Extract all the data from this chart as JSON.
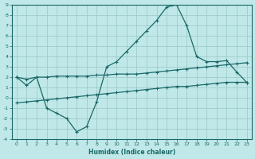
{
  "xlabel": "Humidex (Indice chaleur)",
  "background_color": "#c0e8e8",
  "grid_color": "#a0cccc",
  "line_color": "#1a6868",
  "xlim": [
    -0.5,
    23.5
  ],
  "ylim": [
    -4,
    9
  ],
  "xticks": [
    0,
    1,
    2,
    3,
    4,
    5,
    6,
    7,
    8,
    9,
    10,
    11,
    12,
    13,
    14,
    15,
    16,
    17,
    18,
    19,
    20,
    21,
    22,
    23
  ],
  "yticks": [
    -4,
    -3,
    -2,
    -1,
    0,
    1,
    2,
    3,
    4,
    5,
    6,
    7,
    8,
    9
  ],
  "line_main_x": [
    0,
    1,
    2,
    3,
    4,
    5,
    6,
    7,
    8,
    9,
    10,
    11,
    12,
    13,
    14,
    15,
    16,
    17,
    18,
    19,
    20,
    21,
    22,
    23
  ],
  "line_main_y": [
    2.0,
    1.2,
    2.0,
    -1.0,
    -1.5,
    -2.0,
    -3.3,
    -2.8,
    -0.4,
    3.0,
    3.5,
    4.5,
    5.5,
    6.5,
    7.5,
    8.8,
    9.0,
    7.0,
    4.0,
    3.5,
    3.5,
    3.6,
    2.5,
    1.5
  ],
  "line_upper_x": [
    0,
    1,
    2,
    3,
    4,
    5,
    6,
    7,
    8,
    9,
    10,
    11,
    12,
    13,
    14,
    15,
    16,
    17,
    18,
    19,
    20,
    21,
    22,
    23
  ],
  "line_upper_y": [
    2.0,
    1.8,
    2.0,
    2.0,
    2.1,
    2.1,
    2.1,
    2.1,
    2.2,
    2.2,
    2.3,
    2.3,
    2.3,
    2.4,
    2.5,
    2.6,
    2.7,
    2.8,
    2.9,
    3.0,
    3.1,
    3.2,
    3.3,
    3.4
  ],
  "line_lower_x": [
    0,
    1,
    2,
    3,
    4,
    5,
    6,
    7,
    8,
    9,
    10,
    11,
    12,
    13,
    14,
    15,
    16,
    17,
    18,
    19,
    20,
    21,
    22,
    23
  ],
  "line_lower_y": [
    -0.5,
    -0.4,
    -0.3,
    -0.2,
    -0.1,
    0.0,
    0.1,
    0.2,
    0.3,
    0.4,
    0.5,
    0.6,
    0.7,
    0.8,
    0.9,
    1.0,
    1.1,
    1.1,
    1.2,
    1.3,
    1.4,
    1.5,
    1.5,
    1.5
  ]
}
